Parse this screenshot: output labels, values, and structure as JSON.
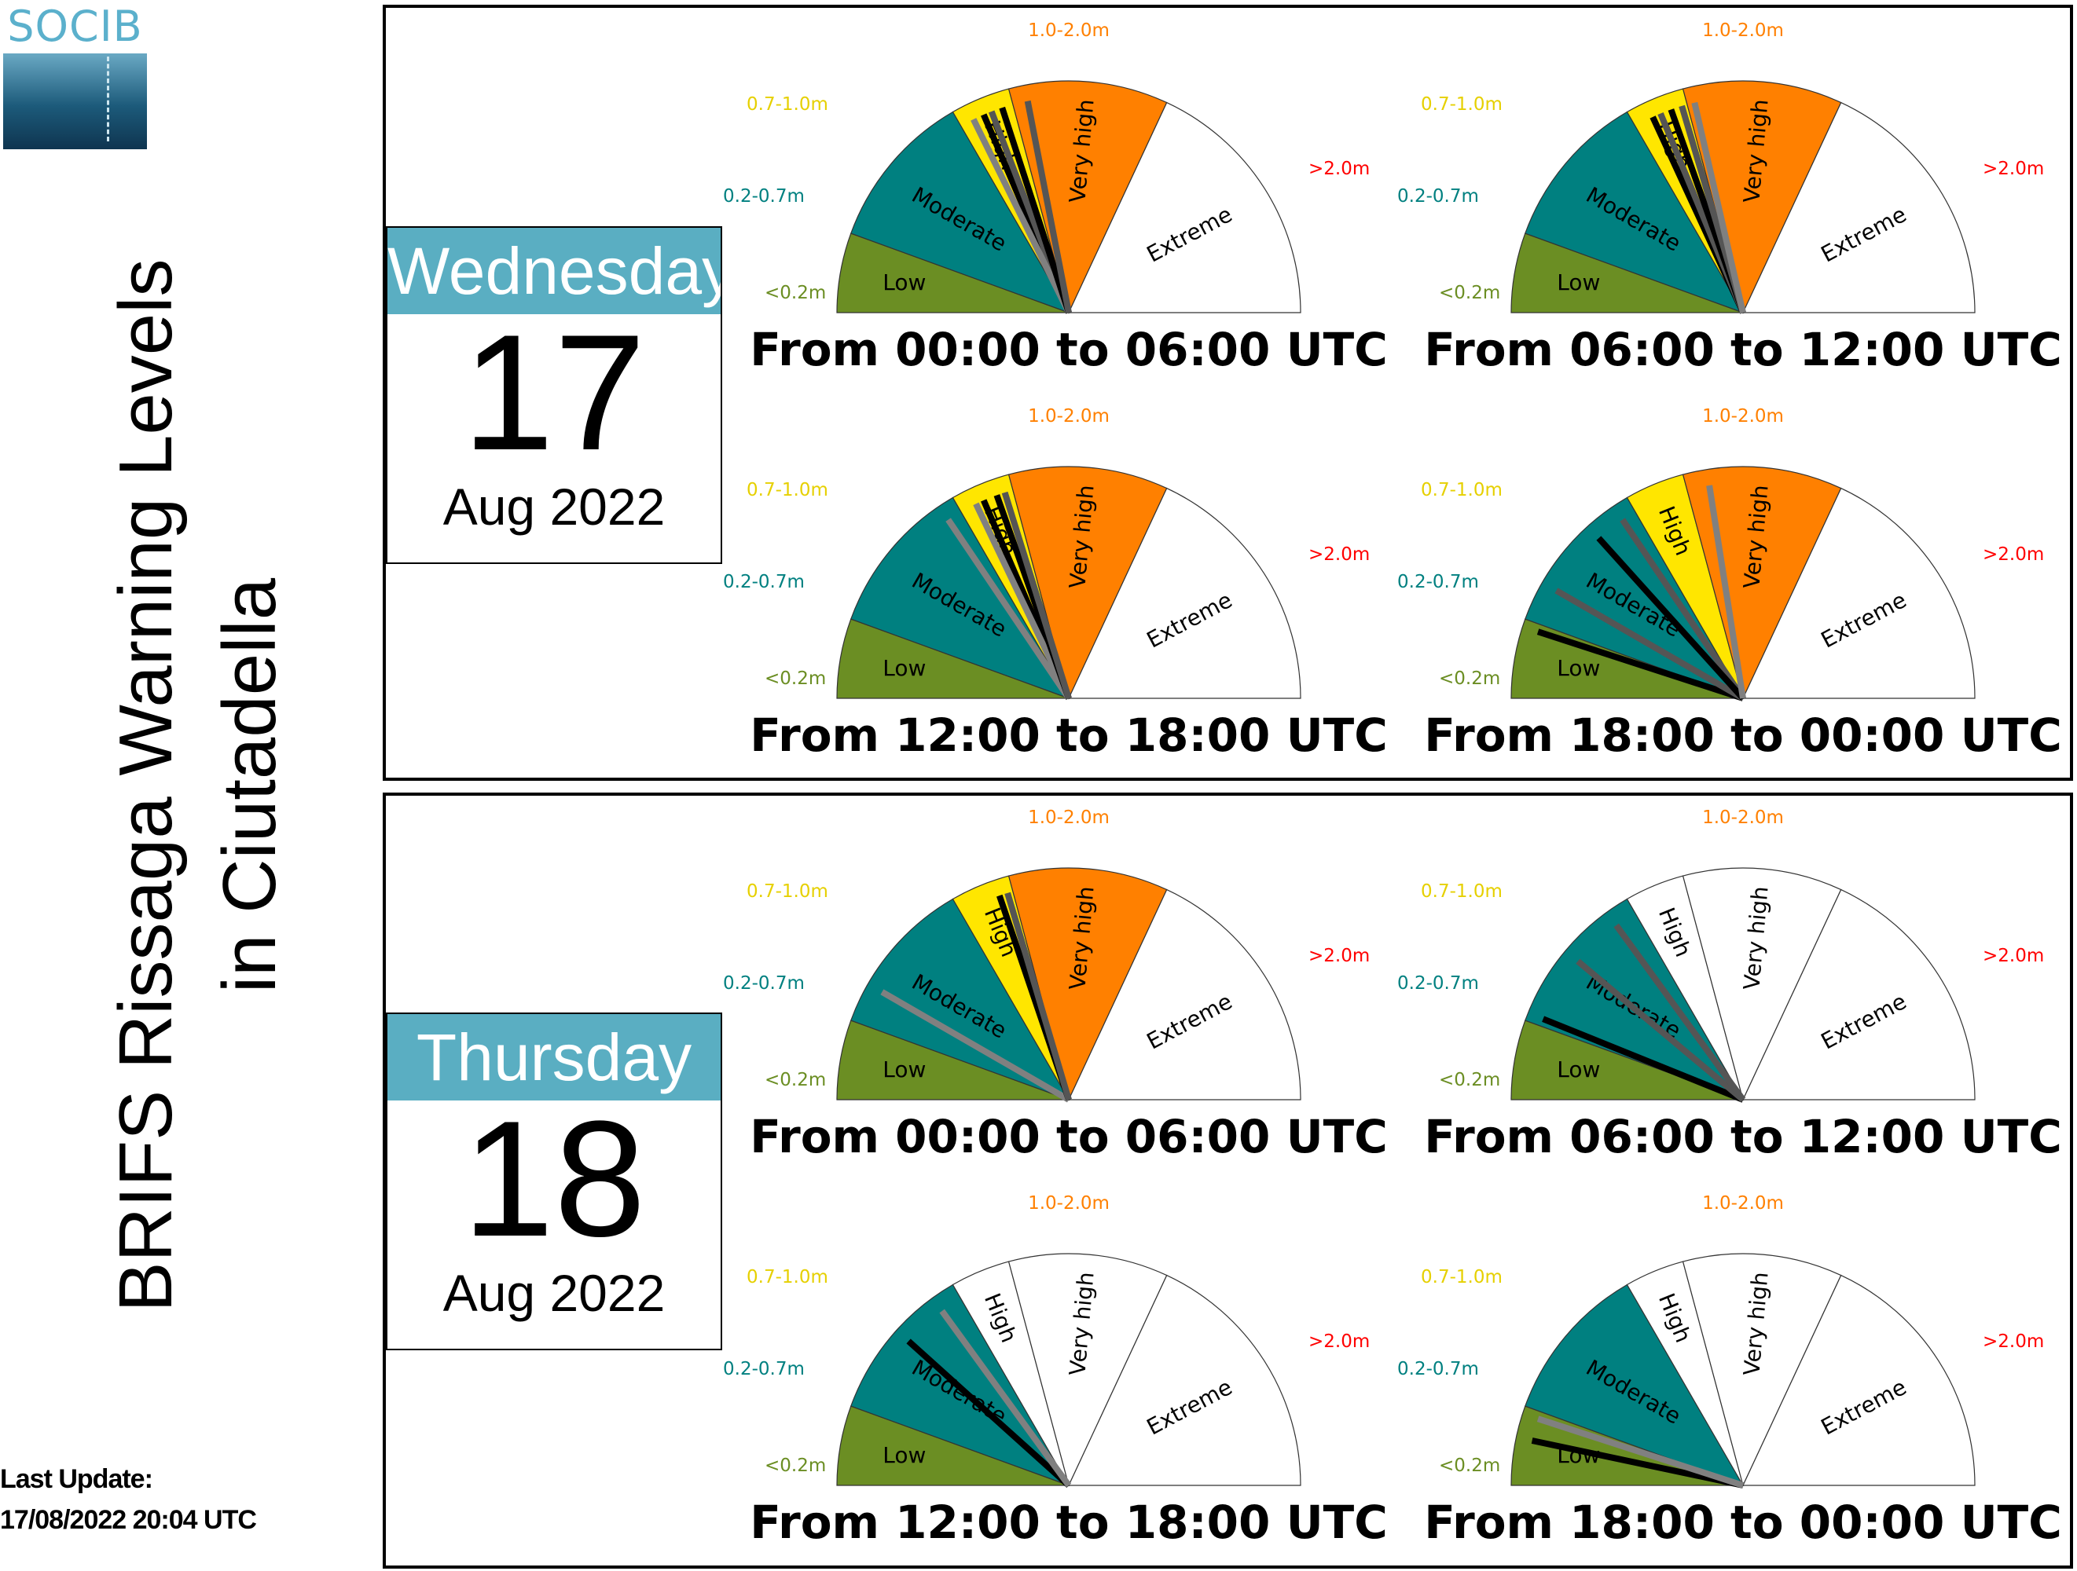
{
  "logo": {
    "text": "SOCIB"
  },
  "title": {
    "line1": "BRIFS Rissaga Warning Levels",
    "line2": "in Ciutadella"
  },
  "last_update": {
    "label": "Last Update:",
    "value": "17/08/2022 20:04 UTC"
  },
  "colors": {
    "low": "#6b8e23",
    "moderate": "#008080",
    "high": "#ffe600",
    "very_high": "#ff8000",
    "extreme": "#ff0000",
    "calendar_header": "#5aaec2"
  },
  "levels": [
    "Low",
    "Moderate",
    "High",
    "Very high",
    "Extreme"
  ],
  "thresholds": [
    "<0.2m",
    "0.2-0.7m",
    "0.7-1.0m",
    "1.0-2.0m",
    ">2.0m"
  ],
  "days": [
    {
      "weekday": "Wednesday",
      "day": "17",
      "month_year": "Aug 2022"
    },
    {
      "weekday": "Thursday",
      "day": "18",
      "month_year": "Aug 2022"
    }
  ],
  "chart_data": {
    "type": "gauge",
    "scale": "needle value 0-5 across Low, Moderate, High, Very high, Extreme",
    "gauges": [
      {
        "day": "Wednesday 17 Aug 2022",
        "period": "From 00:00 to 06:00 UTC",
        "filled_level": "Very high",
        "needles": [
          {
            "color": "black",
            "value": 2.45
          },
          {
            "color": "#555555",
            "value": 2.6
          },
          {
            "color": "#808080",
            "value": 2.25
          },
          {
            "color": "black",
            "value": 2.8
          },
          {
            "color": "#555555",
            "value": 3.1
          }
        ]
      },
      {
        "day": "Wednesday 17 Aug 2022",
        "period": "From 06:00 to 12:00 UTC",
        "filled_level": "Very high",
        "needles": [
          {
            "color": "black",
            "value": 2.35
          },
          {
            "color": "#555555",
            "value": 2.5
          },
          {
            "color": "black",
            "value": 2.7
          },
          {
            "color": "#555555",
            "value": 2.9
          },
          {
            "color": "#808080",
            "value": 3.05
          }
        ]
      },
      {
        "day": "Wednesday 17 Aug 2022",
        "period": "From 12:00 to 18:00 UTC",
        "filled_level": "Very high",
        "needles": [
          {
            "color": "#808080",
            "value": 1.9
          },
          {
            "color": "black",
            "value": 2.45
          },
          {
            "color": "#808080",
            "value": 2.3
          },
          {
            "color": "black",
            "value": 2.7
          },
          {
            "color": "#555555",
            "value": 2.85
          }
        ]
      },
      {
        "day": "Wednesday 17 Aug 2022",
        "period": "From 18:00 to 00:00 UTC",
        "filled_level": "Very high",
        "needles": [
          {
            "color": "black",
            "value": 0.9
          },
          {
            "color": "#555555",
            "value": 1.25
          },
          {
            "color": "#555555",
            "value": 1.9
          },
          {
            "color": "black",
            "value": 1.7
          },
          {
            "color": "#808080",
            "value": 3.15
          }
        ]
      },
      {
        "day": "Thursday 18 Aug 2022",
        "period": "From 00:00 to 06:00 UTC",
        "filled_level": "Very high",
        "needles": [
          {
            "color": "#808080",
            "value": 1.25
          },
          {
            "color": "black",
            "value": 2.75
          },
          {
            "color": "#555555",
            "value": 2.9
          }
        ]
      },
      {
        "day": "Thursday 18 Aug 2022",
        "period": "From 06:00 to 12:00 UTC",
        "filled_level": "Moderate",
        "needles": [
          {
            "color": "black",
            "value": 1.05
          },
          {
            "color": "#555555",
            "value": 1.5
          },
          {
            "color": "#555555",
            "value": 1.85
          }
        ]
      },
      {
        "day": "Thursday 18 Aug 2022",
        "period": "From 12:00 to 18:00 UTC",
        "filled_level": "Moderate",
        "needles": [
          {
            "color": "black",
            "value": 1.55
          },
          {
            "color": "#808080",
            "value": 1.85
          }
        ]
      },
      {
        "day": "Thursday 18 Aug 2022",
        "period": "From 18:00 to 00:00 UTC",
        "filled_level": "Moderate",
        "needles": [
          {
            "color": "black",
            "value": 0.6
          },
          {
            "color": "#808080",
            "value": 0.9
          }
        ]
      }
    ]
  }
}
